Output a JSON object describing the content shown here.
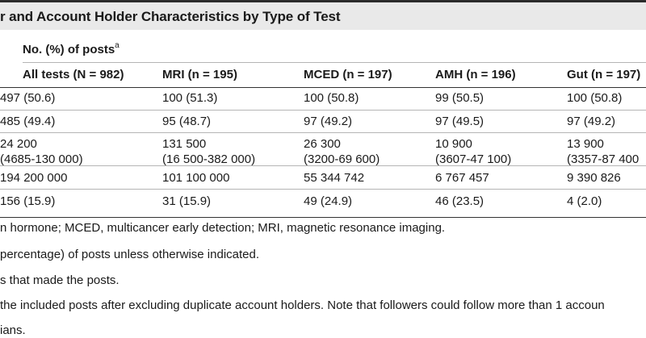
{
  "title": "r and Account Holder Characteristics by Type of Test",
  "header": {
    "group_label": "No. (%) of posts",
    "group_sup": "a",
    "columns": [
      "All tests (N = 982)",
      "MRI (n = 195)",
      "MCED (n = 197)",
      "AMH (n = 196)",
      "Gut (n = 197)"
    ]
  },
  "rows": [
    [
      "497 (50.6)",
      "100 (51.3)",
      "100 (50.8)",
      "99 (50.5)",
      "100 (50.8)"
    ],
    [
      "485 (49.4)",
      "95 (48.7)",
      "97 (49.2)",
      "97 (49.5)",
      "97 (49.2)"
    ],
    [
      "24 200\n(4685-130 000)",
      "131 500\n(16 500-382 000)",
      "26 300\n(3200-69 600)",
      "10 900\n(3607-47 100)",
      "13 900\n(3357-87 400"
    ],
    [
      "194 200 000",
      "101 100 000",
      "55 344 742",
      "6 767 457",
      "9 390 826"
    ],
    [
      "156 (15.9)",
      "31 (15.9)",
      "49 (24.9)",
      "46 (23.5)",
      "4 (2.0)"
    ]
  ],
  "footnotes": [
    "n hormone; MCED, multicancer early detection; MRI, magnetic resonance imaging.",
    "percentage) of posts unless otherwise indicated.",
    "s that made the posts.",
    "the included posts after excluding duplicate account holders. Note that followers could follow more than 1 accoun",
    "ians."
  ]
}
